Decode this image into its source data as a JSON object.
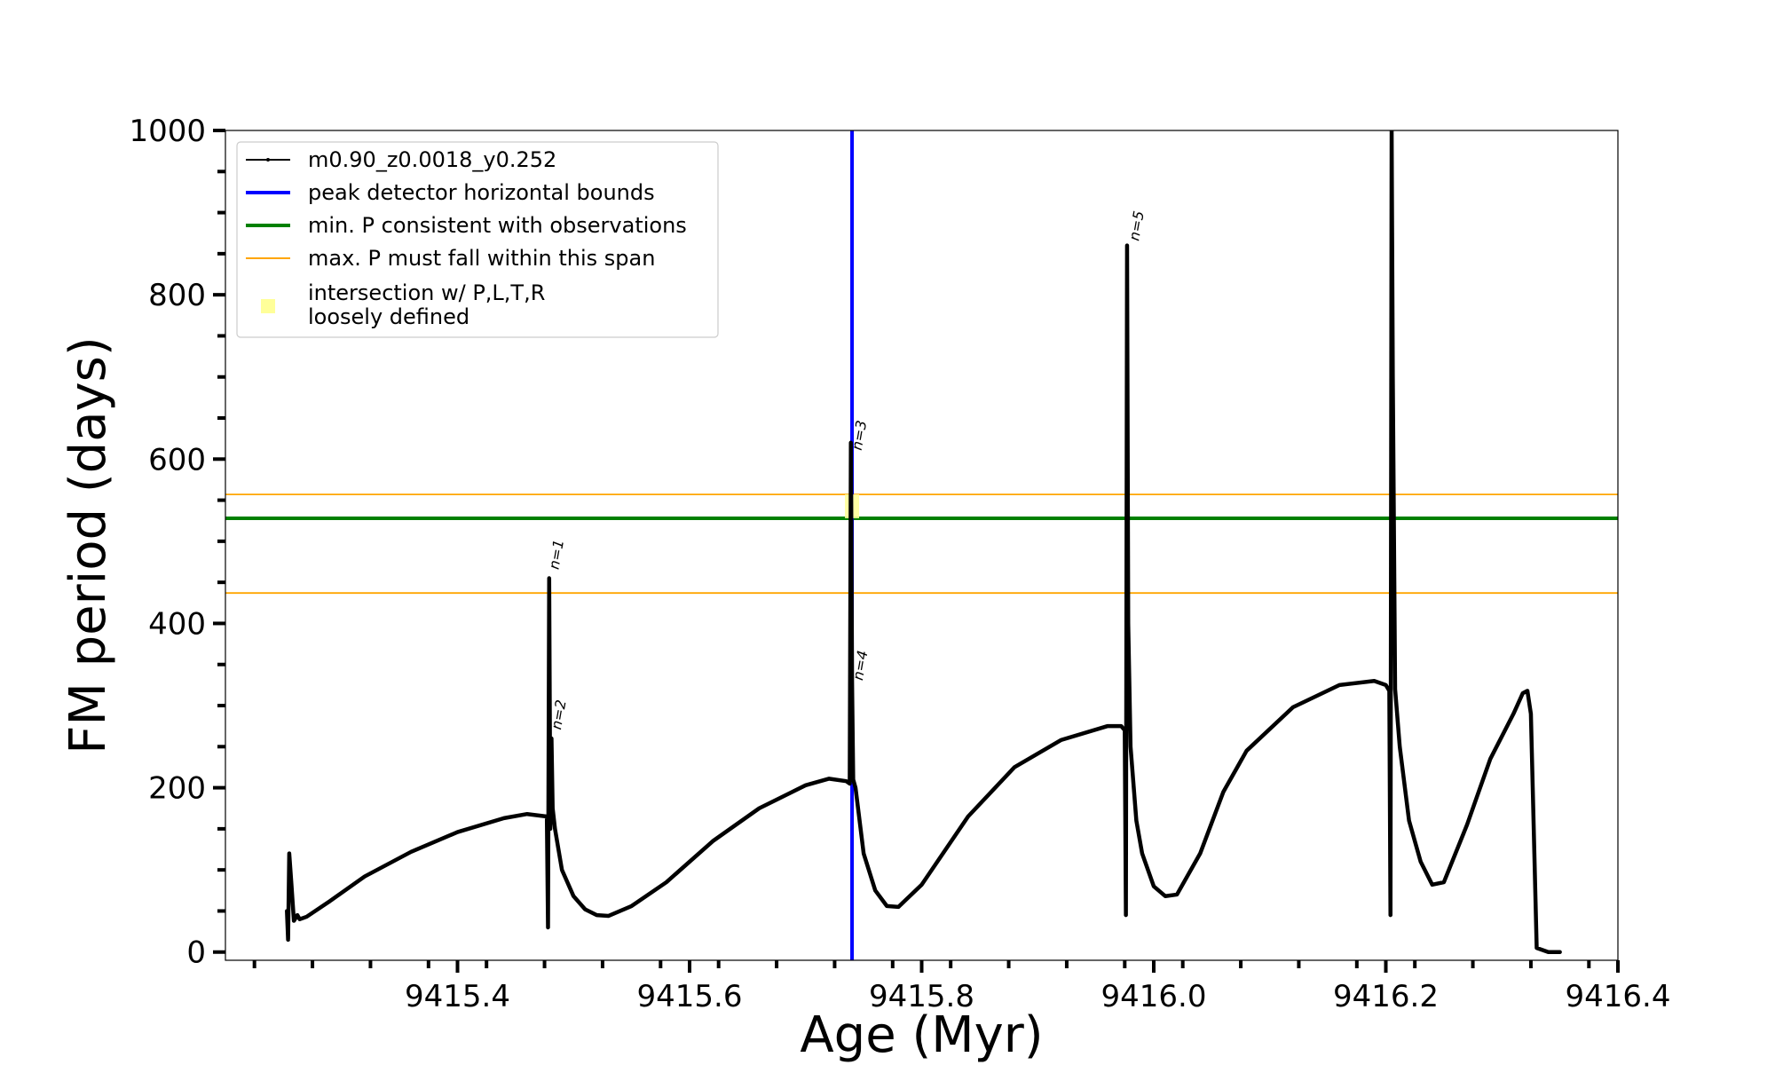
{
  "chart_data": {
    "type": "line",
    "xlabel": "Age (Myr)",
    "ylabel": "FM period (days)",
    "xlim": [
      9415.2,
      9416.4
    ],
    "ylim": [
      -10,
      1000
    ],
    "x_ticks": [
      9415.4,
      9415.6,
      9415.8,
      9416.0,
      9416.2,
      9416.4
    ],
    "x_tick_labels": [
      "9415.4",
      "9415.6",
      "9415.8",
      "9416.0",
      "9416.2",
      "9416.4"
    ],
    "y_ticks": [
      0,
      200,
      400,
      600,
      800,
      1000
    ],
    "y_tick_labels": [
      "0",
      "200",
      "400",
      "600",
      "800",
      "1000"
    ],
    "grid": false,
    "legend_position": "top-left",
    "legend": [
      {
        "label": "m0.90_z0.0018_y0.252",
        "color": "#000000",
        "style": "line-marker"
      },
      {
        "label": "peak detector horizontal bounds",
        "color": "#0000ff",
        "style": "line"
      },
      {
        "label": "min. P consistent with observations",
        "color": "#008000",
        "style": "line"
      },
      {
        "label": "max. P must fall within this span",
        "color": "#ffa500",
        "style": "line-thin"
      },
      {
        "label": "intersection w/ P,L,T,R",
        "label2": "loosely defined",
        "color": "#ffff99",
        "style": "square"
      }
    ],
    "series": [
      {
        "name": "m0.90_z0.0018_y0.252",
        "color": "#000000",
        "points": [
          [
            9415.253,
            50
          ],
          [
            9415.254,
            15
          ],
          [
            9415.255,
            120
          ],
          [
            9415.257,
            80
          ],
          [
            9415.259,
            38
          ],
          [
            9415.262,
            45
          ],
          [
            9415.264,
            40
          ],
          [
            9415.27,
            43
          ],
          [
            9415.29,
            62
          ],
          [
            9415.32,
            92
          ],
          [
            9415.36,
            122
          ],
          [
            9415.4,
            146
          ],
          [
            9415.44,
            163
          ],
          [
            9415.46,
            168
          ],
          [
            9415.477,
            165
          ],
          [
            9415.478,
            30
          ],
          [
            9415.479,
            455
          ],
          [
            9415.48,
            150
          ],
          [
            9415.481,
            260
          ],
          [
            9415.482,
            175
          ],
          [
            9415.484,
            150
          ],
          [
            9415.49,
            100
          ],
          [
            9415.5,
            68
          ],
          [
            9415.51,
            52
          ],
          [
            9415.52,
            45
          ],
          [
            9415.53,
            44
          ],
          [
            9415.55,
            56
          ],
          [
            9415.58,
            85
          ],
          [
            9415.62,
            135
          ],
          [
            9415.66,
            175
          ],
          [
            9415.7,
            203
          ],
          [
            9415.72,
            211
          ],
          [
            9415.735,
            208
          ],
          [
            9415.738,
            205
          ],
          [
            9415.739,
            620
          ],
          [
            9415.74,
            330
          ],
          [
            9415.741,
            210
          ],
          [
            9415.743,
            200
          ],
          [
            9415.75,
            120
          ],
          [
            9415.76,
            75
          ],
          [
            9415.77,
            56
          ],
          [
            9415.78,
            55
          ],
          [
            9415.8,
            82
          ],
          [
            9415.84,
            165
          ],
          [
            9415.88,
            225
          ],
          [
            9415.92,
            258
          ],
          [
            9415.96,
            275
          ],
          [
            9415.972,
            275
          ],
          [
            9415.975,
            270
          ],
          [
            9415.976,
            45
          ],
          [
            9415.977,
            860
          ],
          [
            9415.978,
            400
          ],
          [
            9415.98,
            250
          ],
          [
            9415.985,
            160
          ],
          [
            9415.99,
            120
          ],
          [
            9416.0,
            80
          ],
          [
            9416.01,
            68
          ],
          [
            9416.02,
            70
          ],
          [
            9416.04,
            120
          ],
          [
            9416.06,
            195
          ],
          [
            9416.08,
            245
          ],
          [
            9416.12,
            298
          ],
          [
            9416.16,
            325
          ],
          [
            9416.19,
            330
          ],
          [
            9416.2,
            325
          ],
          [
            9416.203,
            318
          ],
          [
            9416.204,
            45
          ],
          [
            9416.205,
            1000
          ],
          [
            9416.206,
            700
          ],
          [
            9416.208,
            320
          ],
          [
            9416.212,
            250
          ],
          [
            9416.22,
            160
          ],
          [
            9416.23,
            110
          ],
          [
            9416.24,
            82
          ],
          [
            9416.25,
            85
          ],
          [
            9416.27,
            155
          ],
          [
            9416.29,
            235
          ],
          [
            9416.31,
            290
          ],
          [
            9416.318,
            315
          ],
          [
            9416.322,
            318
          ],
          [
            9416.325,
            290
          ],
          [
            9416.328,
            120
          ],
          [
            9416.33,
            5
          ],
          [
            9416.34,
            0
          ],
          [
            9416.35,
            0
          ]
        ]
      }
    ],
    "vlines": [
      {
        "x": 9415.74,
        "color": "#0000ff"
      }
    ],
    "hlines": [
      {
        "y": 528,
        "color": "#008000"
      },
      {
        "y": 557,
        "color": "#ffa500"
      },
      {
        "y": 437,
        "color": "#ffa500"
      }
    ],
    "intersection": {
      "x": 9415.74,
      "y_min": 528,
      "y_max": 557,
      "color": "#ffff99"
    },
    "annotations": [
      {
        "text": "n=1",
        "x": 9415.487,
        "y": 465
      },
      {
        "text": "n=2",
        "x": 9415.489,
        "y": 270
      },
      {
        "text": "n=3",
        "x": 9415.748,
        "y": 610
      },
      {
        "text": "n=4",
        "x": 9415.749,
        "y": 330
      },
      {
        "text": "n=5",
        "x": 9415.987,
        "y": 865
      }
    ]
  }
}
